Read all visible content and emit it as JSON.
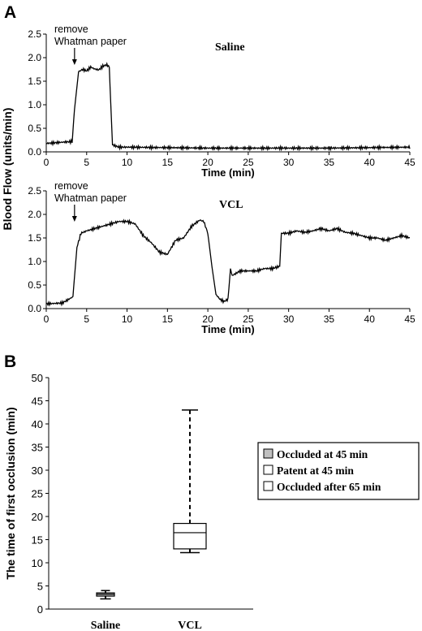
{
  "panel_a_label": "A",
  "panel_b_label": "B",
  "chart_data": [
    {
      "type": "line",
      "panel": "A",
      "title": "Saline",
      "annotation": [
        "remove",
        "Whatman paper"
      ],
      "annotation_x": 3.5,
      "xlabel": "Time (min)",
      "ylabel": "Blood Flow (units/min)",
      "xlim": [
        0,
        45
      ],
      "ylim": [
        0,
        2.5
      ],
      "xticks": [
        "0",
        "5",
        "10",
        "15",
        "20",
        "25",
        "30",
        "35",
        "40",
        "45"
      ],
      "yticks": [
        "0.0",
        "0.5",
        "1.0",
        "1.5",
        "2.0",
        "2.5"
      ],
      "x": [
        0,
        3.2,
        3.5,
        4.0,
        4.5,
        5.0,
        5.5,
        6.0,
        6.5,
        7.0,
        7.5,
        7.8,
        8.2,
        9,
        10,
        15,
        20,
        25,
        30,
        35,
        40,
        45
      ],
      "y": [
        0.18,
        0.22,
        0.9,
        1.7,
        1.75,
        1.72,
        1.8,
        1.76,
        1.74,
        1.82,
        1.85,
        1.8,
        0.15,
        0.1,
        0.1,
        0.09,
        0.08,
        0.08,
        0.08,
        0.08,
        0.09,
        0.1
      ]
    },
    {
      "type": "line",
      "panel": "A",
      "title": "VCL",
      "annotation": [
        "remove",
        "Whatman paper"
      ],
      "annotation_x": 3.5,
      "xlabel": "Time (min)",
      "ylabel": "Blood Flow (units/min)",
      "xlim": [
        0,
        45
      ],
      "ylim": [
        0,
        2.5
      ],
      "xticks": [
        "0",
        "5",
        "10",
        "15",
        "20",
        "25",
        "30",
        "35",
        "40",
        "45"
      ],
      "yticks": [
        "0.0",
        "0.5",
        "1.0",
        "1.5",
        "2.0",
        "2.5"
      ],
      "x": [
        0,
        2,
        3.3,
        3.8,
        4.3,
        5,
        6,
        7,
        8,
        9,
        10,
        11,
        12,
        13,
        14,
        15,
        16,
        17,
        18,
        19,
        19.5,
        20,
        20.5,
        21,
        21.5,
        22,
        22.5,
        22.8,
        23,
        23.5,
        24,
        25,
        26,
        27,
        28,
        28.9,
        29.1,
        30,
        31,
        32,
        33,
        34,
        35,
        36,
        37,
        38,
        39,
        40,
        41,
        42,
        43,
        44,
        45
      ],
      "y": [
        0.1,
        0.12,
        0.25,
        1.3,
        1.6,
        1.65,
        1.7,
        1.75,
        1.8,
        1.85,
        1.85,
        1.8,
        1.55,
        1.4,
        1.2,
        1.15,
        1.45,
        1.5,
        1.75,
        1.88,
        1.85,
        1.6,
        0.9,
        0.3,
        0.2,
        0.15,
        0.2,
        0.85,
        0.7,
        0.75,
        0.8,
        0.8,
        0.8,
        0.85,
        0.85,
        0.9,
        1.6,
        1.6,
        1.65,
        1.62,
        1.65,
        1.7,
        1.65,
        1.7,
        1.62,
        1.6,
        1.55,
        1.5,
        1.5,
        1.45,
        1.5,
        1.55,
        1.5
      ]
    },
    {
      "type": "box",
      "panel": "B",
      "ylabel": "The time of first occlusion (min)",
      "ylim": [
        0,
        50
      ],
      "yticks": [
        "0",
        "5",
        "10",
        "15",
        "20",
        "25",
        "30",
        "35",
        "40",
        "45",
        "50"
      ],
      "categories": [
        "Saline",
        "VCL"
      ],
      "boxes": [
        {
          "category": "Saline",
          "min": 2.2,
          "q1": 2.8,
          "median": 3.2,
          "q3": 3.5,
          "max": 4.0
        },
        {
          "category": "VCL",
          "min": 12.2,
          "q1": 13.0,
          "median": 16.5,
          "q3": 18.5,
          "max": 43.0
        }
      ],
      "legend": [
        "Occluded at 45 min",
        "Patent at 45 min",
        "Occluded after 65 min"
      ],
      "legend_colors": [
        "#c0c0c0",
        "#ffffff",
        "#ffffff"
      ],
      "legend_position": "right"
    }
  ]
}
